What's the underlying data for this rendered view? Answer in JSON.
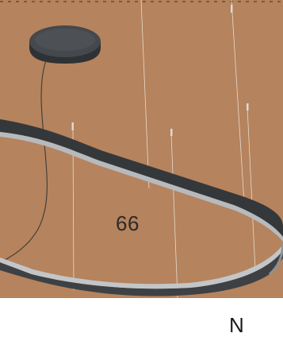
{
  "photo": {
    "subject": "pendant-ring-lamp",
    "colors": {
      "background": "#b5835d",
      "ring_outer": "#3b3e41",
      "ring_inner": "#b9bcbf",
      "canopy": "#3f4246",
      "wire": "#d6d6d6"
    }
  },
  "overlay": {
    "number": "66"
  },
  "footer": {
    "letter": "N"
  }
}
